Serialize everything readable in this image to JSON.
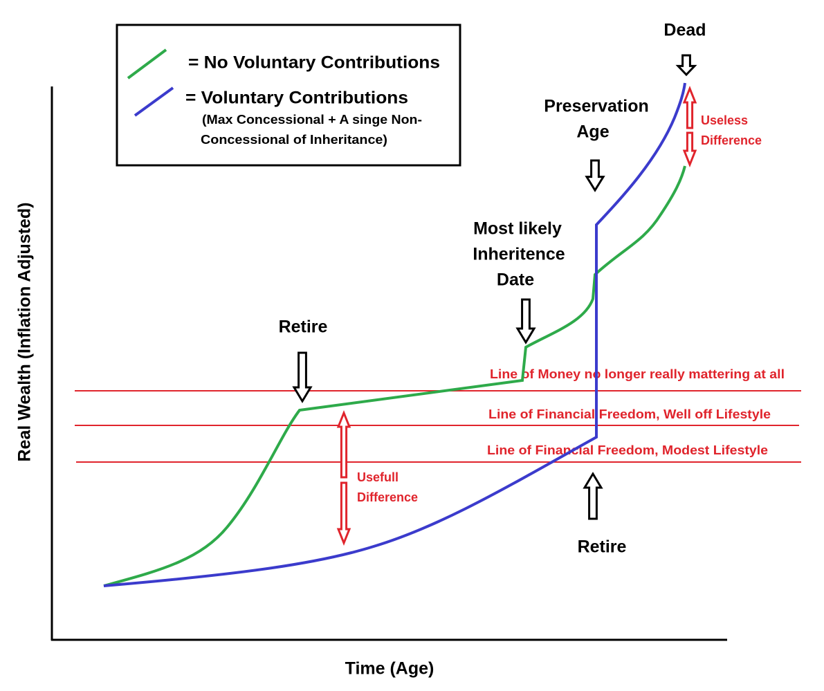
{
  "axes": {
    "x_label": "Time (Age)",
    "y_label": "Real Wealth (Inflation Adjusted)"
  },
  "legend": {
    "items": [
      {
        "label": "= No Voluntary Contributions"
      },
      {
        "label": "= Voluntary Contributions",
        "note_lines": [
          "(Max Concessional + A singe Non-",
          "Concessional of Inheritance)"
        ]
      }
    ]
  },
  "annotations": {
    "dead": "Dead",
    "preservation_age": [
      "Preservation",
      "Age"
    ],
    "inheritance_date": [
      "Most likely",
      "Inheritence",
      "Date"
    ],
    "retire_early": "Retire",
    "retire_late": "Retire",
    "useless_difference": [
      "Useless",
      "Difference"
    ],
    "usefull_difference": [
      "Usefull",
      "Difference"
    ]
  },
  "reference_lines": [
    "Line of Money no longer really mattering at all",
    "Line of Financial Freedom, Well off Lifestyle",
    "Line of Financial Freedom, Modest Lifestyle"
  ]
}
